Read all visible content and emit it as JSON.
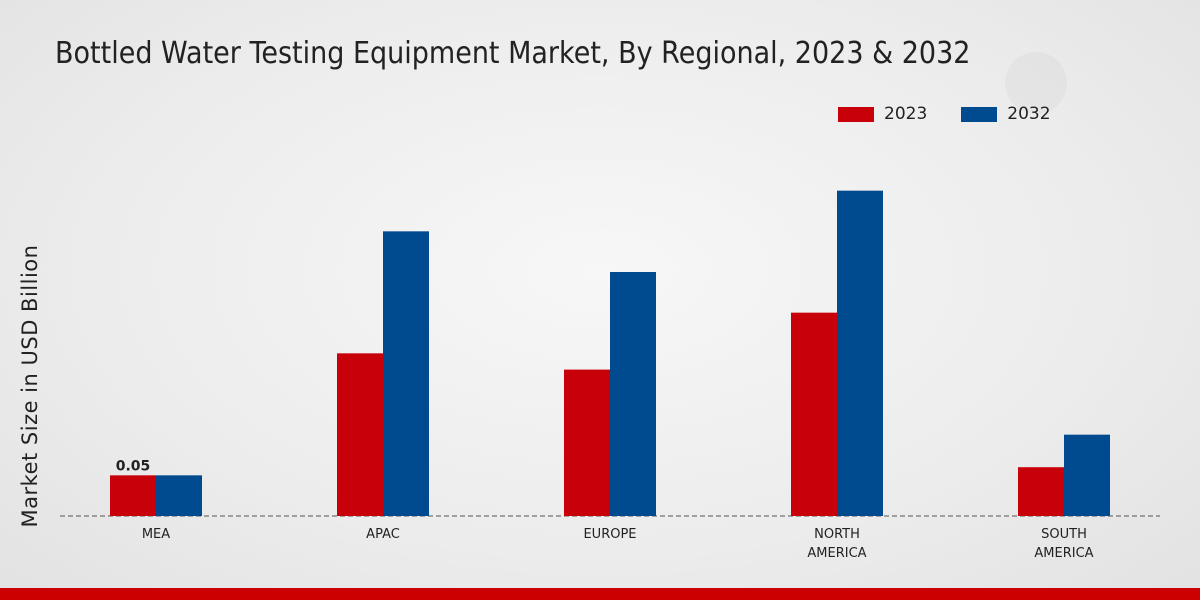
{
  "chart_data": {
    "type": "bar",
    "title": "Bottled Water Testing Equipment Market, By Regional, 2023 & 2032",
    "xlabel": "",
    "ylabel": "Market Size in USD Billion",
    "categories": [
      "MEA",
      "APAC",
      "EUROPE",
      "NORTH\nAMERICA",
      "SOUTH\nAMERICA"
    ],
    "series": [
      {
        "name": "2023",
        "color": "#c8000a",
        "values": [
          0.05,
          0.2,
          0.18,
          0.25,
          0.06
        ]
      },
      {
        "name": "2032",
        "color": "#004a8f",
        "values": [
          0.05,
          0.35,
          0.3,
          0.4,
          0.1
        ]
      }
    ],
    "data_labels": [
      {
        "series": 0,
        "index": 0,
        "text": "0.05"
      }
    ],
    "ylim": [
      0,
      0.45
    ],
    "legend_position": "top-right",
    "grid": false
  }
}
